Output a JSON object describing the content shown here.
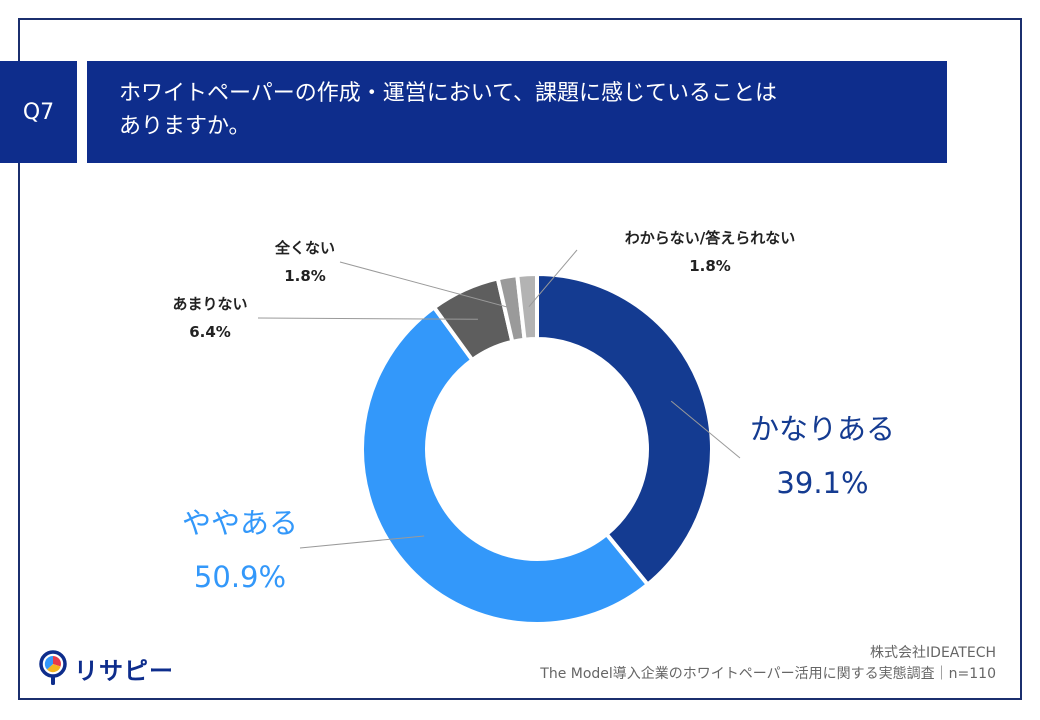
{
  "header": {
    "question_label": "Q7",
    "title_line1": "ホワイトペーパーの作成・運営において、課題に感じていることは",
    "title_line2": "ありますか。"
  },
  "chart_data": {
    "type": "pie",
    "donut": true,
    "title": "ホワイトペーパーの作成・運営において、課題に感じていることはありますか。",
    "categories": [
      "かなりある",
      "ややある",
      "あまりない",
      "全くない",
      "わからない/答えられない"
    ],
    "values": [
      39.1,
      50.9,
      6.4,
      1.8,
      1.8
    ],
    "value_labels": [
      "39.1%",
      "50.9%",
      "6.4%",
      "1.8%",
      "1.8%"
    ],
    "colors": [
      "#143b91",
      "#3398fa",
      "#5e5e5e",
      "#9a9a9a",
      "#b3b3b3"
    ],
    "start": "12 o'clock",
    "direction": "clockwise",
    "sample_size": "n=110"
  },
  "footer": {
    "company": "株式会社IDEATECH",
    "survey": "The Model導入企業のホワイトペーパー活用に関する実態調査｜n=110"
  },
  "logo": {
    "text": "リサピー",
    "icon": "magnifier-pie-icon"
  }
}
